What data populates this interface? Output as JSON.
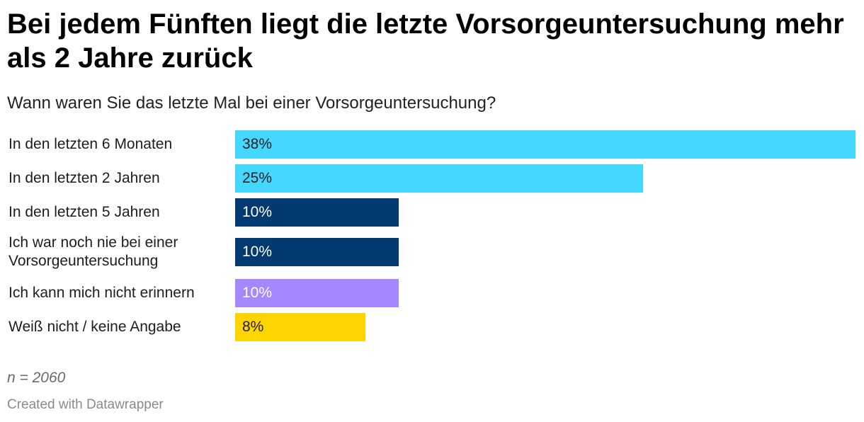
{
  "header": {
    "title": "Bei jedem Fünften liegt die letzte Vorsorgeuntersuchung mehr als 2 Jahre zurück",
    "subtitle": "Wann waren Sie das letzte Mal bei einer Vorsorgeuntersuchung?"
  },
  "chart_data": {
    "type": "bar",
    "orientation": "horizontal",
    "title": "Bei jedem Fünften liegt die letzte Vorsorgeuntersuchung mehr als 2 Jahre zurück",
    "subtitle": "Wann waren Sie das letzte Mal bei einer Vorsorgeuntersuchung?",
    "categories": [
      "In den letzten 6 Monaten",
      "In den letzten 2 Jahren",
      "In den letzten 5 Jahren",
      "Ich war noch nie bei einer Vorsorgeuntersuchung",
      "Ich kann mich nicht erinnern",
      "Weiß nicht / keine Angabe"
    ],
    "values": [
      38,
      25,
      10,
      10,
      10,
      8
    ],
    "value_labels": [
      "38%",
      "25%",
      "10%",
      "10%",
      "10%",
      "8%"
    ],
    "bar_colors": [
      "#45d8ff",
      "#45d8ff",
      "#003a70",
      "#003a70",
      "#a588ff",
      "#ffd500"
    ],
    "label_colors": [
      "#1d1d1d",
      "#1d1d1d",
      "#ffffff",
      "#ffffff",
      "#ffffff",
      "#1d1d1d"
    ],
    "xlim": [
      0,
      38
    ],
    "xlabel": "",
    "ylabel": ""
  },
  "footer": {
    "note": "n = 2060",
    "credit": "Created with Datawrapper"
  }
}
